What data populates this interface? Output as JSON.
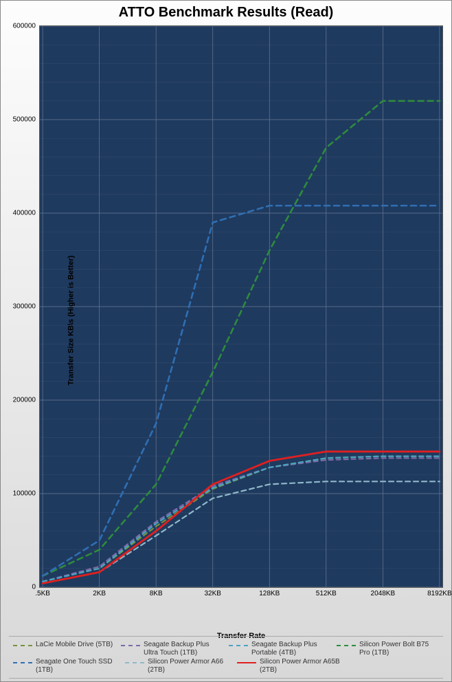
{
  "chart": {
    "type": "line",
    "title": "ATTO Benchmark Results (Read)",
    "background_color_plot": "#1f3a5f",
    "background_gradient_top": "#fdfdfd",
    "background_gradient_bottom": "#d8d8d8",
    "grid_color": "#6a7a94",
    "grid_width": 0.7,
    "y_axis": {
      "label": "Transfer Size   KB\\s   (Higher is Better)",
      "min": 0,
      "max": 600000,
      "tick_step": 100000,
      "ticks": [
        0,
        100000,
        200000,
        300000,
        400000,
        500000,
        600000
      ]
    },
    "x_axis": {
      "label": "Transfer Rate",
      "categories": [
        ".5KB",
        "2KB",
        "8KB",
        "32KB",
        "128KB",
        "512KB",
        "2048KB",
        "8192KB"
      ]
    },
    "series": [
      {
        "name": "LaCie Mobile Drive (5TB)",
        "color": "#76923c",
        "dash": "6 5",
        "width": 2.2,
        "values": [
          6000,
          20000,
          65000,
          105000,
          128000,
          138000,
          140000,
          140000
        ]
      },
      {
        "name": "Seagate Backup Plus Ultra Touch (1TB)",
        "color": "#7c6aa6",
        "dash": "6 5",
        "width": 2.2,
        "values": [
          6000,
          22000,
          70000,
          108000,
          128000,
          136000,
          138000,
          138000
        ]
      },
      {
        "name": "Seagate Backup Plus Portable (4TB)",
        "color": "#4aa3c4",
        "dash": "6 5",
        "width": 2.2,
        "values": [
          6000,
          20000,
          68000,
          106000,
          128000,
          138000,
          140000,
          140000
        ]
      },
      {
        "name": "Silicon Power Bolt B75 Pro (1TB)",
        "color": "#2e8b3d",
        "dash": "8 6",
        "width": 2.6,
        "values": [
          12000,
          40000,
          110000,
          230000,
          360000,
          470000,
          520000,
          520000
        ]
      },
      {
        "name": "Seagate One Touch SSD (1TB)",
        "color": "#2f6fb3",
        "dash": "8 6",
        "width": 2.6,
        "values": [
          12000,
          50000,
          175000,
          390000,
          408000,
          408000,
          408000,
          408000
        ]
      },
      {
        "name": "Silicon Power Armor A66 (2TB)",
        "color": "#8fb8c9",
        "dash": "7 5",
        "width": 2.2,
        "values": [
          4000,
          16000,
          55000,
          95000,
          110000,
          113000,
          113000,
          113000
        ]
      },
      {
        "name": "Silicon Power Armor A65B (2TB)",
        "color": "#e02020",
        "dash": "none",
        "width": 2.8,
        "values": [
          4000,
          16000,
          60000,
          110000,
          135000,
          145000,
          145000,
          145000
        ]
      }
    ],
    "legend": {
      "rows": [
        [
          0,
          1,
          2,
          3
        ],
        [
          4,
          5,
          6
        ]
      ]
    },
    "title_fontsize": 20,
    "axis_label_fontsize": 11,
    "tick_fontsize": 10,
    "legend_fontsize": 10
  }
}
